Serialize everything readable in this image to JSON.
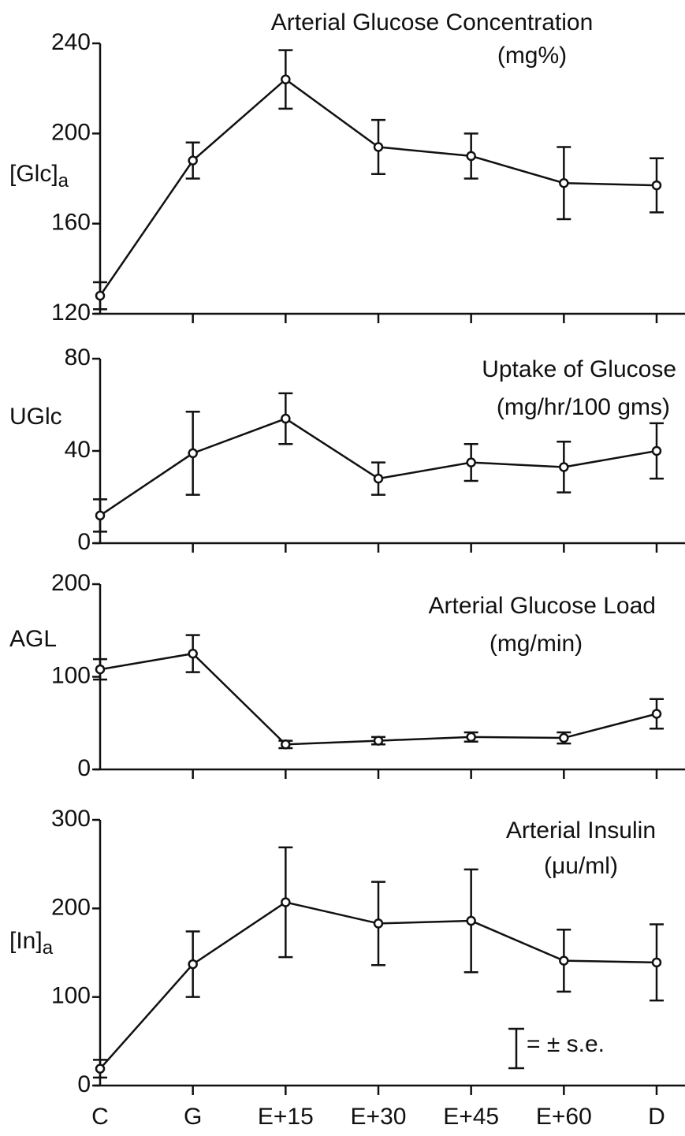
{
  "chart_data": [
    {
      "type": "line",
      "title": "Arterial Glucose Concentration",
      "subtitle": "(mg%)",
      "ylabel": {
        "text": "[Glc]",
        "sub": "a"
      },
      "values": [
        128,
        188,
        224,
        194,
        190,
        178,
        177
      ],
      "errors": [
        6,
        8,
        13,
        12,
        10,
        16,
        12
      ],
      "ylim": [
        120,
        240
      ],
      "yticks": [
        120,
        160,
        200,
        240
      ]
    },
    {
      "type": "line",
      "title": "Uptake of Glucose",
      "subtitle": "(mg/hr/100 gms)",
      "ylabel": {
        "text": "UGlc"
      },
      "values": [
        12,
        39,
        54,
        28,
        35,
        33,
        40
      ],
      "errors": [
        7,
        18,
        11,
        7,
        8,
        11,
        12
      ],
      "ylim": [
        0,
        80
      ],
      "yticks": [
        0,
        40,
        80
      ]
    },
    {
      "type": "line",
      "title": "Arterial Glucose Load",
      "subtitle": "(mg/min)",
      "ylabel": {
        "text": "AGL"
      },
      "values": [
        108,
        125,
        27,
        31,
        35,
        34,
        60
      ],
      "errors": [
        11,
        20,
        4,
        4,
        5,
        6,
        16
      ],
      "ylim": [
        0,
        200
      ],
      "yticks": [
        0,
        100,
        200
      ]
    },
    {
      "type": "line",
      "title": "Arterial Insulin",
      "subtitle": "(μu/ml)",
      "ylabel": {
        "text": "[In]",
        "sub": "a"
      },
      "categories": [
        "C",
        "G",
        "E+15",
        "E+30",
        "E+45",
        "E+60",
        "D"
      ],
      "values": [
        19,
        137,
        207,
        183,
        186,
        141,
        139
      ],
      "errors": [
        10,
        37,
        62,
        47,
        58,
        35,
        43
      ],
      "ylim": [
        0,
        300
      ],
      "yticks": [
        0,
        100,
        200,
        300
      ],
      "annotation": "= ± s.e."
    }
  ]
}
